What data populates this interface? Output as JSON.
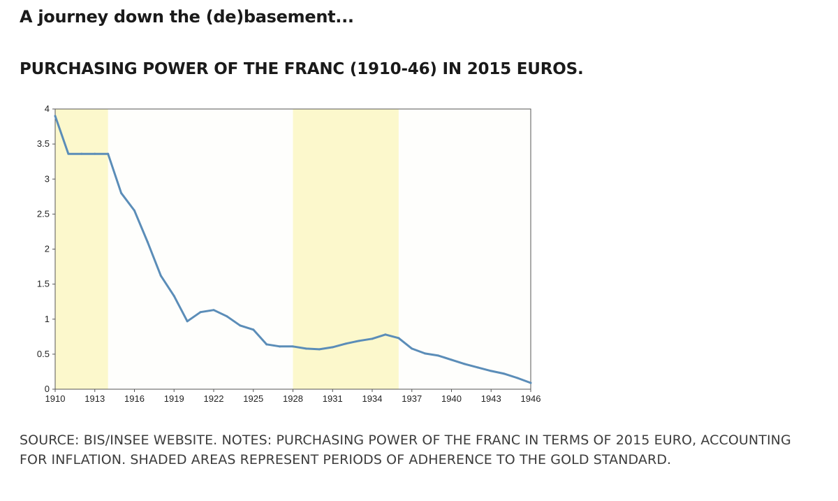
{
  "page": {
    "heading": "A journey down the (de)basement...",
    "source_note": "SOURCE: BIS/INSEE WEBSITE. NOTES: PURCHASING POWER OF THE FRANC IN TERMS OF 2015 EURO, ACCOUNTING FOR INFLATION. SHADED AREAS REPRESENT PERIODS OF ADHERENCE TO THE GOLD STANDARD."
  },
  "colors": {
    "line": "#5b8db8",
    "shade": "#fcf8cc",
    "plot_background": "#fefefc",
    "frame": "#555555"
  },
  "chart_data": {
    "type": "line",
    "title": "PURCHASING POWER OF THE FRANC (1910-46) IN 2015 EUROS.",
    "xlabel": "",
    "ylabel": "",
    "xlim": [
      1910,
      1946
    ],
    "ylim": [
      0,
      4
    ],
    "grid": false,
    "legend": "none",
    "x_ticks": [
      1910,
      1913,
      1916,
      1919,
      1922,
      1925,
      1928,
      1931,
      1934,
      1937,
      1940,
      1943,
      1946
    ],
    "y_ticks": [
      {
        "value": 0,
        "label": "0"
      },
      {
        "value": 0.5,
        "label": "0.5"
      },
      {
        "value": 1,
        "label": "1"
      },
      {
        "value": 1.5,
        "label": "1.5"
      },
      {
        "value": 2,
        "label": "2"
      },
      {
        "value": 2.5,
        "label": "2.5"
      },
      {
        "value": 3,
        "label": "3"
      },
      {
        "value": 3.5,
        "label": "3.5"
      },
      {
        "value": 4,
        "label": "4"
      }
    ],
    "shaded_periods": [
      {
        "start": 1910,
        "end": 1914
      },
      {
        "start": 1928,
        "end": 1936
      }
    ],
    "series": [
      {
        "x": [
          1910,
          1911,
          1912,
          1913,
          1914,
          1915,
          1916,
          1917,
          1918,
          1919,
          1920,
          1921,
          1922,
          1923,
          1924,
          1925,
          1926,
          1927,
          1928,
          1929,
          1930,
          1931,
          1932,
          1933,
          1934,
          1935,
          1936,
          1937,
          1938,
          1939,
          1940,
          1941,
          1942,
          1943,
          1944,
          1945,
          1946
        ],
        "values": [
          3.9,
          3.36,
          3.36,
          3.36,
          3.36,
          2.8,
          2.55,
          2.1,
          1.62,
          1.33,
          0.97,
          1.1,
          1.13,
          1.04,
          0.91,
          0.85,
          0.64,
          0.61,
          0.61,
          0.58,
          0.57,
          0.6,
          0.65,
          0.69,
          0.72,
          0.78,
          0.73,
          0.58,
          0.51,
          0.48,
          0.42,
          0.36,
          0.31,
          0.26,
          0.22,
          0.16,
          0.09
        ]
      }
    ]
  }
}
